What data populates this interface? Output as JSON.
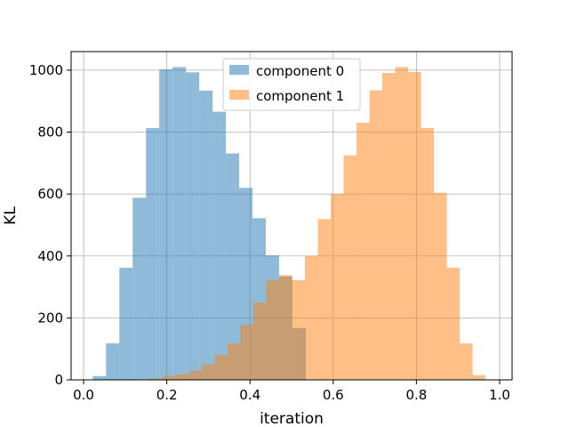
{
  "chart_data": {
    "type": "histogram",
    "xlabel": "iteration",
    "ylabel": "KL",
    "xlim": [
      -0.03,
      1.03
    ],
    "ylim": [
      0,
      1060
    ],
    "x_ticks": [
      0.0,
      0.2,
      0.4,
      0.6,
      0.8,
      1.0
    ],
    "x_tick_labels": [
      "0.0",
      "0.2",
      "0.4",
      "0.6",
      "0.8",
      "1.0"
    ],
    "y_ticks": [
      0,
      200,
      400,
      600,
      800,
      1000
    ],
    "y_tick_labels": [
      "0",
      "200",
      "400",
      "600",
      "800",
      "1000"
    ],
    "grid": true,
    "legend_position": "top-center",
    "series": [
      {
        "name": "component 0",
        "color": "#1f77b4",
        "alpha": 0.5,
        "bin_edges": [
          0.022,
          0.054,
          0.086,
          0.118,
          0.15,
          0.182,
          0.214,
          0.246,
          0.278,
          0.31,
          0.342,
          0.374,
          0.406,
          0.438,
          0.47,
          0.502,
          0.534
        ],
        "counts": [
          12,
          118,
          362,
          588,
          813,
          1003,
          1010,
          993,
          934,
          866,
          731,
          620,
          522,
          402,
          334,
          167
        ]
      },
      {
        "name": "component 1",
        "color": "#ff7f0e",
        "alpha": 0.5,
        "bin_edges": [
          0.16,
          0.191,
          0.222,
          0.253,
          0.284,
          0.315,
          0.346,
          0.377,
          0.408,
          0.439,
          0.47,
          0.501,
          0.532,
          0.563,
          0.594,
          0.625,
          0.656,
          0.687,
          0.718,
          0.749,
          0.78,
          0.811,
          0.842,
          0.873,
          0.904,
          0.935,
          0.966
        ],
        "counts": [
          4,
          12,
          18,
          30,
          50,
          80,
          118,
          178,
          250,
          321,
          338,
          322,
          400,
          519,
          601,
          725,
          830,
          935,
          991,
          1010,
          994,
          813,
          604,
          362,
          118,
          15
        ]
      }
    ]
  }
}
